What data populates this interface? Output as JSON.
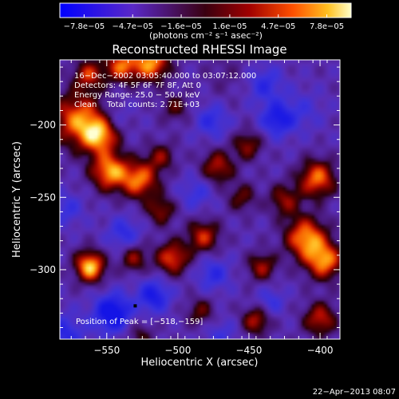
{
  "chart_data": {
    "type": "heatmap",
    "title": "Reconstructed RHESSI Image",
    "xlabel": "Heliocentric X (arcsec)",
    "ylabel": "Heliocentric Y (arcsec)",
    "xlim": [
      -583,
      -386
    ],
    "ylim": [
      -348,
      -155
    ],
    "x_ticks": [
      -550,
      -500,
      -450,
      -400
    ],
    "x_tick_labels": [
      "−550",
      "−500",
      "−450",
      "−400"
    ],
    "y_ticks": [
      -200,
      -250,
      -300
    ],
    "y_tick_labels": [
      "−200",
      "−250",
      "−300"
    ],
    "colorbar": {
      "range": [
        -7.8e-05,
        7.8e-05
      ],
      "tick_labels": [
        "−7.8e−05",
        "−4.7e−05",
        "−1.6e−05",
        "1.6e−05",
        "4.7e−05",
        "7.8e−05"
      ],
      "unit_label": "(photons cm⁻² s⁻¹ asec⁻²)"
    },
    "annotations": [
      "16−Dec−2002 03:05:40.000 to 03:07:12.000",
      "Detectors: 4F 5F 6F 7F 8F, Att 0",
      "Energy Range: 25.0 − 50.0 keV",
      "Clean    Total counts: 2.71E+03"
    ],
    "peak_label": "Position of Peak = [−518,−159]",
    "peak_position": [
      -518,
      -159
    ],
    "marker_position": [
      -530,
      -325
    ],
    "blobs": [
      {
        "x": -519,
        "y": -157,
        "a": 1.0,
        "s": 9
      },
      {
        "x": -540,
        "y": -159,
        "a": 0.85,
        "s": 8
      },
      {
        "x": -563,
        "y": -165,
        "a": 0.7,
        "s": 7
      },
      {
        "x": -570,
        "y": -196,
        "a": 0.9,
        "s": 13
      },
      {
        "x": -555,
        "y": -207,
        "a": 0.95,
        "s": 9
      },
      {
        "x": -548,
        "y": -232,
        "a": 1.0,
        "s": 9
      },
      {
        "x": -527,
        "y": -238,
        "a": 0.9,
        "s": 9
      },
      {
        "x": -512,
        "y": -222,
        "a": 0.5,
        "s": 7
      },
      {
        "x": -512,
        "y": -259,
        "a": 0.55,
        "s": 7
      },
      {
        "x": -561,
        "y": -300,
        "a": 0.7,
        "s": 7
      },
      {
        "x": -563,
        "y": -295,
        "a": 0.55,
        "s": 7
      },
      {
        "x": -531,
        "y": -292,
        "a": 0.55,
        "s": 7
      },
      {
        "x": -504,
        "y": -292,
        "a": 0.8,
        "s": 8
      },
      {
        "x": -482,
        "y": -277,
        "a": 0.7,
        "s": 8
      },
      {
        "x": -472,
        "y": -229,
        "a": 0.65,
        "s": 8
      },
      {
        "x": -451,
        "y": -214,
        "a": 0.55,
        "s": 7
      },
      {
        "x": -425,
        "y": -252,
        "a": 0.55,
        "s": 8
      },
      {
        "x": -402,
        "y": -237,
        "a": 0.9,
        "s": 9
      },
      {
        "x": -410,
        "y": -278,
        "a": 1.0,
        "s": 10
      },
      {
        "x": -397,
        "y": -294,
        "a": 0.95,
        "s": 9
      },
      {
        "x": -441,
        "y": -298,
        "a": 0.6,
        "s": 7
      },
      {
        "x": -445,
        "y": -335,
        "a": 0.65,
        "s": 7
      },
      {
        "x": -400,
        "y": -334,
        "a": 0.7,
        "s": 8
      },
      {
        "x": -484,
        "y": -329,
        "a": 0.45,
        "s": 7
      },
      {
        "x": -527,
        "y": -345,
        "a": 0.35,
        "s": 7
      },
      {
        "x": -502,
        "y": -188,
        "a": 0.4,
        "s": 7
      },
      {
        "x": -455,
        "y": -250,
        "a": 0.45,
        "s": 7
      },
      {
        "x": -465,
        "y": -165,
        "a": 0.15,
        "s": 12
      },
      {
        "x": -430,
        "y": -196,
        "a": -0.65,
        "s": 8
      },
      {
        "x": -439,
        "y": -172,
        "a": -0.45,
        "s": 9
      },
      {
        "x": -476,
        "y": -197,
        "a": -0.45,
        "s": 8
      },
      {
        "x": -538,
        "y": -275,
        "a": -0.45,
        "s": 8
      },
      {
        "x": -517,
        "y": -318,
        "a": -0.65,
        "s": 8
      },
      {
        "x": -546,
        "y": -330,
        "a": -0.9,
        "s": 9
      },
      {
        "x": -475,
        "y": -303,
        "a": -0.45,
        "s": 8
      },
      {
        "x": -435,
        "y": -322,
        "a": -0.35,
        "s": 7
      },
      {
        "x": -487,
        "y": -247,
        "a": -0.35,
        "s": 8
      },
      {
        "x": -578,
        "y": -258,
        "a": -0.35,
        "s": 8
      },
      {
        "x": -545,
        "y": -195,
        "a": -0.25,
        "s": 8
      },
      {
        "x": -412,
        "y": -190,
        "a": -0.25,
        "s": 10
      },
      {
        "x": -580,
        "y": -345,
        "a": -0.5,
        "s": 10
      },
      {
        "x": -470,
        "y": -345,
        "a": -0.3,
        "s": 8
      }
    ]
  },
  "footer": {
    "date": "22−Apr−2013 08:07"
  }
}
